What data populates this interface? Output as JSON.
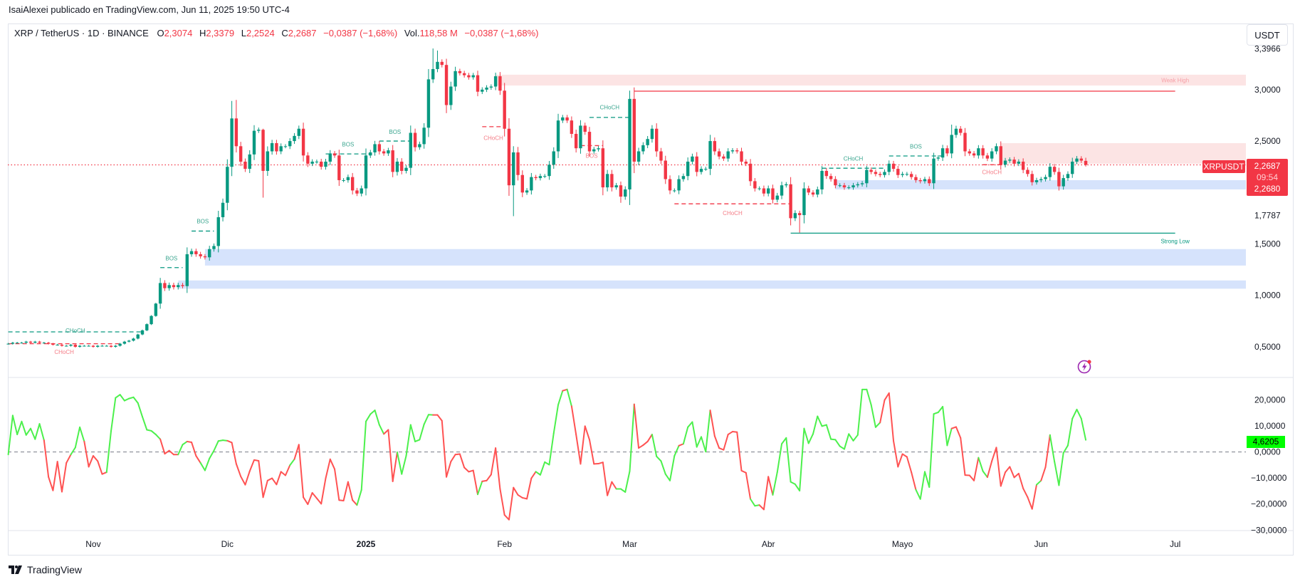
{
  "publish_line": "IsaiAlexei publicado en TradingView.com, Jun 11, 2025 19:50 UTC-4",
  "legend": {
    "symbol": "XRP / TetherUS · 1D · BINANCE",
    "o_label": "O",
    "o": "2,3074",
    "h_label": "H",
    "h": "2,3379",
    "l_label": "L",
    "l": "2,2524",
    "c_label": "C",
    "c": "2,2687",
    "change": "−0,0387 (−1,68%)",
    "vol_label": "Vol.",
    "vol": "118,58 M",
    "vol_change": "−0,0387 (−1,68%)"
  },
  "currency_button": "USDT",
  "price_tag": {
    "symbol": "XRPUSDT",
    "price": "2,2687",
    "countdown": "09:54",
    "second_price": "2,2680"
  },
  "osc_tag": "4,6205",
  "footer_brand": "TradingView",
  "colors": {
    "up": "#089981",
    "down": "#f23645",
    "osc_up": "#4cf04c",
    "osc_down": "#ff5252",
    "demand": "#d6e3fc",
    "supply": "#fce4e4"
  },
  "chart_data": [
    {
      "type": "candlestick",
      "title": "XRP / TetherUS · 1D · BINANCE",
      "x_unit": "daily candle index",
      "xlim": [
        -0.5,
        277
      ],
      "ylim": [
        0.202,
        3.629
      ],
      "last": {
        "open": 2.3074,
        "high": 2.3379,
        "low": 2.2524,
        "close": 2.2687
      },
      "first_open": 0.53,
      "closes": [
        0.53,
        0.54,
        0.54,
        0.54,
        0.55,
        0.54,
        0.55,
        0.54,
        0.54,
        0.53,
        0.52,
        0.52,
        0.51,
        0.51,
        0.52,
        0.5,
        0.51,
        0.51,
        0.51,
        0.5,
        0.51,
        0.51,
        0.51,
        0.5,
        0.51,
        0.53,
        0.55,
        0.56,
        0.58,
        0.62,
        0.66,
        0.72,
        0.8,
        0.92,
        1.12,
        1.07,
        1.1,
        1.08,
        1.1,
        1.09,
        1.4,
        1.43,
        1.4,
        1.38,
        1.37,
        1.45,
        1.48,
        1.76,
        1.9,
        2.25,
        2.72,
        2.45,
        2.3,
        2.23,
        2.37,
        2.6,
        2.61,
        2.21,
        2.4,
        2.48,
        2.4,
        2.45,
        2.45,
        2.5,
        2.55,
        2.62,
        2.36,
        2.28,
        2.3,
        2.3,
        2.25,
        2.3,
        2.38,
        2.36,
        2.12,
        2.12,
        2.15,
        2.02,
        1.99,
        2.04,
        2.36,
        2.39,
        2.47,
        2.4,
        2.38,
        2.41,
        2.2,
        2.3,
        2.21,
        2.24,
        2.58,
        2.44,
        2.47,
        2.63,
        3.1,
        3.2,
        3.27,
        3.24,
        2.85,
        3.03,
        3.18,
        3.16,
        3.14,
        3.12,
        3.14,
        2.98,
        3.0,
        3.02,
        3.03,
        3.13,
        2.99,
        2.62,
        2.07,
        2.39,
        2.17,
        2.0,
        2.02,
        2.15,
        2.14,
        2.16,
        2.16,
        2.27,
        2.4,
        2.7,
        2.73,
        2.7,
        2.57,
        2.43,
        2.65,
        2.59,
        2.4,
        2.42,
        2.43,
        2.05,
        2.18,
        2.05,
        2.07,
        1.96,
        2.03,
        2.91,
        2.3,
        2.4,
        2.46,
        2.52,
        2.62,
        2.4,
        2.31,
        2.13,
        2.02,
        2.02,
        2.13,
        2.16,
        2.3,
        2.35,
        2.2,
        2.23,
        2.23,
        2.5,
        2.4,
        2.35,
        2.33,
        2.4,
        2.41,
        2.4,
        2.3,
        2.28,
        2.11,
        2.04,
        2.04,
        1.99,
        2.04,
        1.93,
        1.97,
        2.07,
        2.08,
        1.75,
        1.8,
        1.78,
        2.04,
        2.0,
        1.98,
        2.03,
        2.21,
        2.16,
        2.13,
        2.07,
        2.07,
        2.05,
        2.05,
        2.07,
        2.08,
        2.09,
        2.22,
        2.2,
        2.18,
        2.17,
        2.2,
        2.28,
        2.23,
        2.17,
        2.18,
        2.18,
        2.15,
        2.12,
        2.11,
        2.13,
        2.09,
        2.33,
        2.34,
        2.43,
        2.38,
        2.56,
        2.62,
        2.58,
        2.4,
        2.38,
        2.36,
        2.43,
        2.36,
        2.33,
        2.4,
        2.45,
        2.27,
        2.31,
        2.32,
        2.28,
        2.3,
        2.22,
        2.18,
        2.1,
        2.12,
        2.13,
        2.15,
        2.25,
        2.2,
        2.06,
        2.14,
        2.18,
        2.3,
        2.33,
        2.31,
        2.2687
      ],
      "high_overrides": {
        "50": 2.89,
        "51": 2.9,
        "57": 2.62,
        "94": 3.2,
        "95": 3.4,
        "96": 3.38,
        "98": 3.3,
        "113": 2.45,
        "139": 2.99,
        "211": 2.66
      },
      "low_overrides": {
        "57": 1.95,
        "113": 1.77,
        "137": 1.9,
        "177": 1.61,
        "178": 1.7
      },
      "price_axis": [
        {
          "value": 3.3966,
          "label": "3,3966"
        },
        {
          "value": 3.0,
          "label": "3,0000"
        },
        {
          "value": 2.5,
          "label": "2,5000"
        },
        {
          "value": 1.7787,
          "label": "1,7787"
        },
        {
          "value": 1.5,
          "label": "1,5000"
        },
        {
          "value": 1.0,
          "label": "1,0000"
        },
        {
          "value": 0.5,
          "label": "0,5000"
        }
      ],
      "time_axis": [
        {
          "day": 19,
          "label": "Nov"
        },
        {
          "day": 49,
          "label": "Dic"
        },
        {
          "day": 80,
          "label": "2025",
          "bold": true
        },
        {
          "day": 111,
          "label": "Feb"
        },
        {
          "day": 139,
          "label": "Mar"
        },
        {
          "day": 170,
          "label": "Abr"
        },
        {
          "day": 200,
          "label": "Mayo"
        },
        {
          "day": 231,
          "label": "Jun"
        },
        {
          "day": 261,
          "label": "Jul"
        }
      ],
      "zones": [
        {
          "kind": "supply",
          "from": 109,
          "to": 277,
          "top": 3.145,
          "bottom": 3.04,
          "label": "Weak High"
        },
        {
          "kind": "supply",
          "from": 222,
          "to": 277,
          "top": 2.48,
          "bottom": 2.28
        },
        {
          "kind": "demand",
          "from": 185,
          "to": 277,
          "top": 2.12,
          "bottom": 2.03
        },
        {
          "kind": "demand",
          "from": 44,
          "to": 277,
          "top": 1.45,
          "bottom": 1.29
        },
        {
          "kind": "demand",
          "from": 38,
          "to": 277,
          "top": 1.145,
          "bottom": 1.065
        }
      ],
      "levels": [
        {
          "label": "Weak High",
          "price": 2.985,
          "from": 140,
          "to": 261,
          "color": "down"
        },
        {
          "label": "Strong Low",
          "price": 1.605,
          "from": 175,
          "to": 261,
          "color": "up"
        }
      ],
      "structure": [
        {
          "label": "CHoCH",
          "price": 0.53,
          "from": 0,
          "to": 25,
          "color": "down",
          "label_price": 0.45
        },
        {
          "label": "CHoCH",
          "price": 0.645,
          "from": 0,
          "to": 30,
          "color": "up",
          "label_price": 0.66
        },
        {
          "label": "BOS",
          "price": 1.27,
          "from": 34,
          "to": 39,
          "color": "up",
          "label_price": 1.36
        },
        {
          "label": "BOS",
          "price": 1.625,
          "from": 41,
          "to": 46,
          "color": "up",
          "label_price": 1.72
        },
        {
          "label": "BOS",
          "price": 2.375,
          "from": 71,
          "to": 81,
          "color": "up",
          "label_price": 2.47
        },
        {
          "label": "BOS",
          "price": 2.5,
          "from": 83,
          "to": 90,
          "color": "up",
          "label_price": 2.59
        },
        {
          "label": "CHoCH",
          "price": 2.64,
          "from": 106,
          "to": 111,
          "color": "down",
          "label_price": 2.53
        },
        {
          "label": "BOS",
          "price": 2.456,
          "from": 128,
          "to": 133,
          "color": "down",
          "label_price": 2.36
        },
        {
          "label": "CHoCH",
          "price": 2.73,
          "from": 130,
          "to": 139,
          "color": "up",
          "label_price": 2.83
        },
        {
          "label": "CHoCH",
          "price": 1.89,
          "from": 149,
          "to": 175,
          "color": "down",
          "label_price": 1.8
        },
        {
          "label": "CHoCH",
          "price": 2.236,
          "from": 182,
          "to": 196,
          "color": "up",
          "label_price": 2.33
        },
        {
          "label": "BOS",
          "price": 2.355,
          "from": 197,
          "to": 209,
          "color": "up",
          "label_price": 2.45
        },
        {
          "label": "CHoCH",
          "price": 2.27,
          "from": 218,
          "to": 222,
          "color": "down",
          "label_price": 2.2
        }
      ],
      "current_price": 2.2687
    },
    {
      "type": "line",
      "title": "Oscillator",
      "ylim": [
        -30.2,
        28.6
      ],
      "zero_line": 0,
      "values": [
        -1.0,
        14,
        6.7,
        11.7,
        6.5,
        9,
        4.9,
        10.8,
        4.5,
        -9.6,
        -14.8,
        -3.7,
        -15.3,
        -4.2,
        -1,
        1.7,
        9.5,
        4,
        -5.7,
        -1.5,
        -3.5,
        -8.5,
        -7.8,
        8.1,
        20.8,
        22,
        19.7,
        20.5,
        21,
        18.8,
        13.5,
        8.5,
        8.1,
        6.7,
        4.9,
        -0.7,
        0.5,
        -1,
        -1,
        2.8,
        4,
        3.7,
        -1.5,
        -4.2,
        -7.1,
        -2.5,
        0.5,
        4.2,
        4.5,
        4.3,
        3.6,
        -4.6,
        -9.4,
        -12.6,
        -7.4,
        -3.1,
        -3.4,
        -17.4,
        -11,
        -10.1,
        -12.5,
        -7.6,
        -9,
        -5.1,
        -2.8,
        2.8,
        -17.4,
        -20.1,
        -15.7,
        -17.8,
        -19.9,
        -10.1,
        -2.8,
        -6.6,
        -18.5,
        -18.7,
        -11.5,
        -18.5,
        -20.4,
        -14.6,
        11.7,
        14.5,
        16,
        10.4,
        6.9,
        8.5,
        -11.3,
        -0.1,
        -8.5,
        -1.5,
        10.4,
        4,
        4.7,
        10.6,
        14.3,
        14.2,
        14.2,
        12,
        -9.6,
        -3.7,
        -1,
        -0.8,
        -6,
        -7.6,
        -7.1,
        -16.3,
        -11.3,
        -11,
        -8.7,
        1.5,
        -14.2,
        -24.2,
        -26,
        -13.7,
        -16.5,
        -17.6,
        -18,
        -10.1,
        -7.6,
        -8.8,
        -3.9,
        -4.9,
        7.2,
        18.1,
        23.5,
        24,
        17.6,
        6.7,
        -4.6,
        9.9,
        4.7,
        -4.6,
        -4.5,
        -4,
        -16.7,
        -11.5,
        -14.2,
        -14.2,
        -15.4,
        -7.4,
        18.3,
        1.5,
        2.6,
        4,
        6.7,
        -1.7,
        -3.5,
        -8.5,
        -11,
        -1.5,
        2.4,
        3.1,
        9.5,
        11.5,
        1.9,
        5.8,
        0.1,
        16,
        6.1,
        1.5,
        0.8,
        6.7,
        7.8,
        7.6,
        -7.2,
        -8,
        -18.1,
        -20.7,
        -20.4,
        -22.1,
        -9.5,
        -16.5,
        -7.8,
        3.1,
        5.4,
        -11.5,
        -12.4,
        -14.9,
        9,
        3.3,
        6.9,
        13.7,
        9.9,
        10.4,
        4.9,
        4.7,
        2.2,
        1.1,
        6.9,
        4.3,
        6.5,
        24,
        24,
        18.1,
        9.5,
        11.3,
        19.9,
        22.6,
        4.2,
        -5.7,
        -0.8,
        -1.9,
        -7.8,
        -14.5,
        -18.1,
        -7.6,
        -13.5,
        14.6,
        15.2,
        17.4,
        2.5,
        9,
        9.6,
        5.4,
        -8.9,
        -9,
        -11,
        -2.2,
        -7.4,
        -9.7,
        -3.5,
        1.7,
        -13.1,
        -7.8,
        -5.7,
        -9.8,
        -8.3,
        -14,
        -17.4,
        -21.9,
        -12.6,
        -11,
        -5.8,
        6.5,
        -3.7,
        -12.8,
        -0.4,
        2.5,
        12.8,
        16.3,
        12.8,
        4.6205
      ],
      "trend": "ggggggggrrrrrrgggrrrrrggggggggggggrrrrggrrrggggggrrrrrrrrrrrrrrgrrrrrrrrrrrrrrggggggrrrggggggggrrrrrrrrrrgrrrrrrrrrrrrggggggrgrrrrrrrrrrggggrrrrggggggrggggggrrrrrrrrrggrrrggggggggggggggggggggggggrrrrrrrrggggggggrrrrrrggrrrrrrrrrrrgrrgggggggg",
      "axis": [
        {
          "value": 20,
          "label": "20,0000"
        },
        {
          "value": 10,
          "label": "10,0000"
        },
        {
          "value": 0,
          "label": "0,0000"
        },
        {
          "value": -10,
          "label": "−10,0000"
        },
        {
          "value": -20,
          "label": "−20,0000"
        },
        {
          "value": -30,
          "label": "−30,0000"
        }
      ]
    }
  ]
}
